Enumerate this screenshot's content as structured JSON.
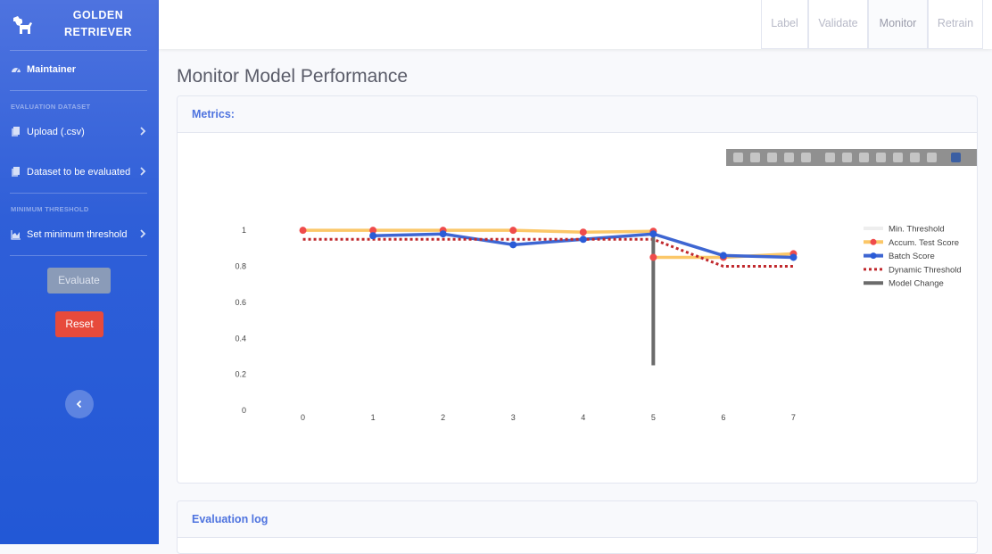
{
  "brand": {
    "line1": "GOLDEN",
    "line2": "RETRIEVER"
  },
  "sidebar": {
    "maintainer_label": "Maintainer",
    "section_eval": "EVALUATION DATASET",
    "upload_label": "Upload (.csv)",
    "dataset_label": "Dataset to be evaluated",
    "section_threshold": "MINIMUM THRESHOLD",
    "threshold_label": "Set minimum threshold",
    "evaluate_label": "Evaluate",
    "reset_label": "Reset"
  },
  "tabs": [
    {
      "label": "Label"
    },
    {
      "label": "Validate"
    },
    {
      "label": "Monitor",
      "active": true
    },
    {
      "label": "Retrain"
    }
  ],
  "page": {
    "title": "Monitor Model Performance"
  },
  "cards": {
    "metrics_title": "Metrics:",
    "log_title": "Evaluation log"
  },
  "modebar_icons": [
    "camera-icon",
    "zoom-icon",
    "pan-icon",
    "box-select-icon",
    "lasso-icon",
    "zoom-in-icon",
    "zoom-out-icon",
    "autoscale-icon",
    "reset-axes-icon",
    "spike-lines-icon",
    "hover-closest-icon",
    "hover-compare-icon",
    "plotly-logo-icon"
  ],
  "chart_data": {
    "type": "line",
    "x_ticks": [
      "0",
      "1",
      "2",
      "3",
      "4",
      "5",
      "6",
      "7"
    ],
    "y_ticks": [
      "0",
      "0.2",
      "0.4",
      "0.6",
      "0.8",
      "1"
    ],
    "ylim": [
      0,
      1.1
    ],
    "xlim": [
      -0.3,
      7.3
    ],
    "legend_position": "right",
    "series": [
      {
        "name": "Min. Threshold",
        "color": "#eeeeee",
        "style": "line",
        "x": [],
        "y": []
      },
      {
        "name": "Accum. Test Score",
        "color": "#fbc768",
        "marker": "#ef4b4b",
        "style": "line+markers",
        "x": [
          0,
          1,
          2,
          3,
          4,
          5,
          5,
          6,
          7
        ],
        "y": [
          1.0,
          1.0,
          1.0,
          1.0,
          0.99,
          0.995,
          0.85,
          0.85,
          0.87
        ]
      },
      {
        "name": "Batch Score",
        "color": "#3e66d2",
        "marker": "#2a5bd7",
        "style": "line+markers",
        "x": [
          1,
          2,
          3,
          4,
          5,
          6,
          7
        ],
        "y": [
          0.97,
          0.98,
          0.92,
          0.95,
          0.98,
          0.86,
          0.85
        ]
      },
      {
        "name": "Dynamic Threshold",
        "color": "#c0282c",
        "style": "dot",
        "x": [
          0,
          1,
          2,
          3,
          4,
          5,
          6,
          7
        ],
        "y": [
          0.95,
          0.95,
          0.95,
          0.95,
          0.95,
          0.95,
          0.8,
          0.8
        ]
      },
      {
        "name": "Model Change",
        "color": "#6b6b6b",
        "style": "vline",
        "x": [
          5,
          5
        ],
        "y": [
          0.25,
          1.0
        ]
      }
    ]
  }
}
